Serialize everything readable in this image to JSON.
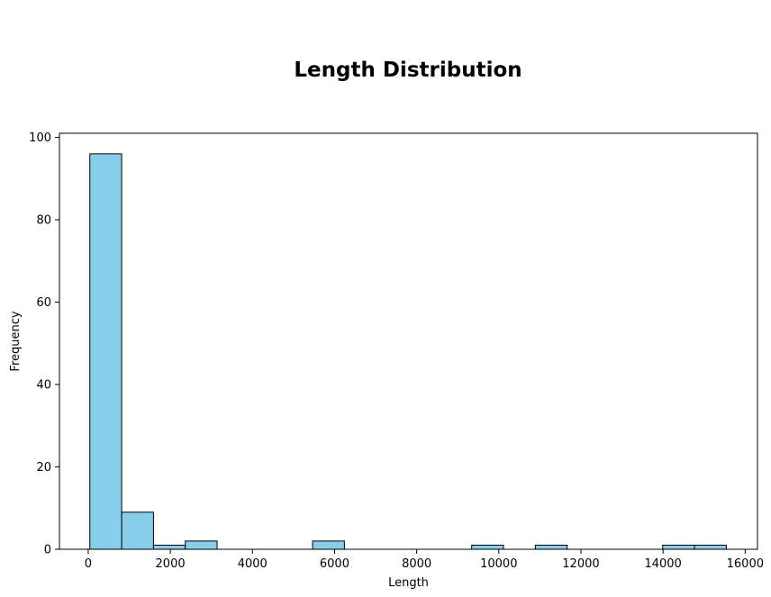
{
  "chart_data": {
    "type": "bar",
    "title": "Length Distribution",
    "xlabel": "Length",
    "ylabel": "Frequency",
    "xlim": [
      -700,
      16300
    ],
    "ylim": [
      0,
      101
    ],
    "xticks": [
      0,
      2000,
      4000,
      6000,
      8000,
      10000,
      12000,
      14000,
      16000
    ],
    "xtick_labels": [
      "0",
      "2000",
      "4000",
      "6000",
      "8000",
      "10000",
      "12000",
      "14000",
      "16000"
    ],
    "yticks": [
      0,
      20,
      40,
      60,
      80,
      100
    ],
    "ytick_labels": [
      "0",
      "20",
      "40",
      "60",
      "80",
      "100"
    ],
    "bins": [
      {
        "start": 40,
        "end": 815,
        "count": 96
      },
      {
        "start": 815,
        "end": 1590,
        "count": 9
      },
      {
        "start": 1590,
        "end": 2365,
        "count": 1
      },
      {
        "start": 2365,
        "end": 3140,
        "count": 2
      },
      {
        "start": 3140,
        "end": 3915,
        "count": 0
      },
      {
        "start": 3915,
        "end": 4690,
        "count": 0
      },
      {
        "start": 4690,
        "end": 5465,
        "count": 0
      },
      {
        "start": 5465,
        "end": 6240,
        "count": 2
      },
      {
        "start": 6240,
        "end": 7015,
        "count": 0
      },
      {
        "start": 7015,
        "end": 7790,
        "count": 0
      },
      {
        "start": 7790,
        "end": 8565,
        "count": 0
      },
      {
        "start": 8565,
        "end": 9340,
        "count": 0
      },
      {
        "start": 9340,
        "end": 10115,
        "count": 1
      },
      {
        "start": 10115,
        "end": 10890,
        "count": 0
      },
      {
        "start": 10890,
        "end": 11665,
        "count": 1
      },
      {
        "start": 11665,
        "end": 12440,
        "count": 0
      },
      {
        "start": 12440,
        "end": 13215,
        "count": 0
      },
      {
        "start": 13215,
        "end": 13990,
        "count": 0
      },
      {
        "start": 13990,
        "end": 14765,
        "count": 1
      },
      {
        "start": 14765,
        "end": 15540,
        "count": 1
      }
    ],
    "bar_color": "#87CEEB",
    "edge_color": "#000000",
    "grid": false,
    "legend": "none"
  }
}
